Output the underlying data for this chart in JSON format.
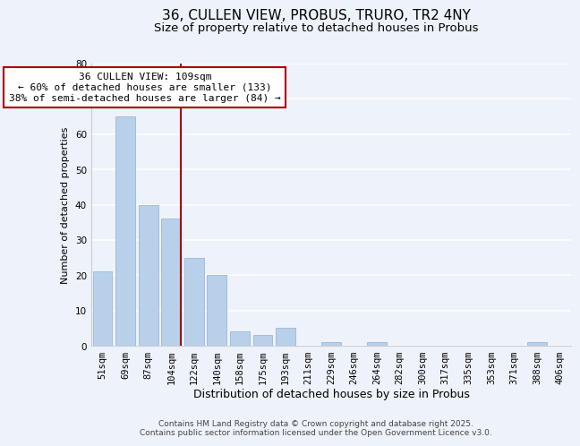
{
  "title": "36, CULLEN VIEW, PROBUS, TRURO, TR2 4NY",
  "subtitle": "Size of property relative to detached houses in Probus",
  "xlabel": "Distribution of detached houses by size in Probus",
  "ylabel": "Number of detached properties",
  "categories": [
    "51sqm",
    "69sqm",
    "87sqm",
    "104sqm",
    "122sqm",
    "140sqm",
    "158sqm",
    "175sqm",
    "193sqm",
    "211sqm",
    "229sqm",
    "246sqm",
    "264sqm",
    "282sqm",
    "300sqm",
    "317sqm",
    "335sqm",
    "353sqm",
    "371sqm",
    "388sqm",
    "406sqm"
  ],
  "values": [
    21,
    65,
    40,
    36,
    25,
    20,
    4,
    3,
    5,
    0,
    1,
    0,
    1,
    0,
    0,
    0,
    0,
    0,
    0,
    1,
    0
  ],
  "bar_color": "#b8d0ea",
  "bar_edge_color": "#9ab8d8",
  "vline_index": 3,
  "vline_color": "#aa0000",
  "annotation_text": "36 CULLEN VIEW: 109sqm\n← 60% of detached houses are smaller (133)\n38% of semi-detached houses are larger (84) →",
  "annotation_box_facecolor": "#ffffff",
  "annotation_box_edgecolor": "#aa0000",
  "ylim": [
    0,
    80
  ],
  "yticks": [
    0,
    10,
    20,
    30,
    40,
    50,
    60,
    70,
    80
  ],
  "background_color": "#eef2fa",
  "grid_color": "#ffffff",
  "footer": "Contains HM Land Registry data © Crown copyright and database right 2025.\nContains public sector information licensed under the Open Government Licence v3.0.",
  "title_fontsize": 11,
  "subtitle_fontsize": 9.5,
  "xlabel_fontsize": 9,
  "ylabel_fontsize": 8,
  "tick_fontsize": 7.5,
  "annotation_fontsize": 8,
  "footer_fontsize": 6.5
}
